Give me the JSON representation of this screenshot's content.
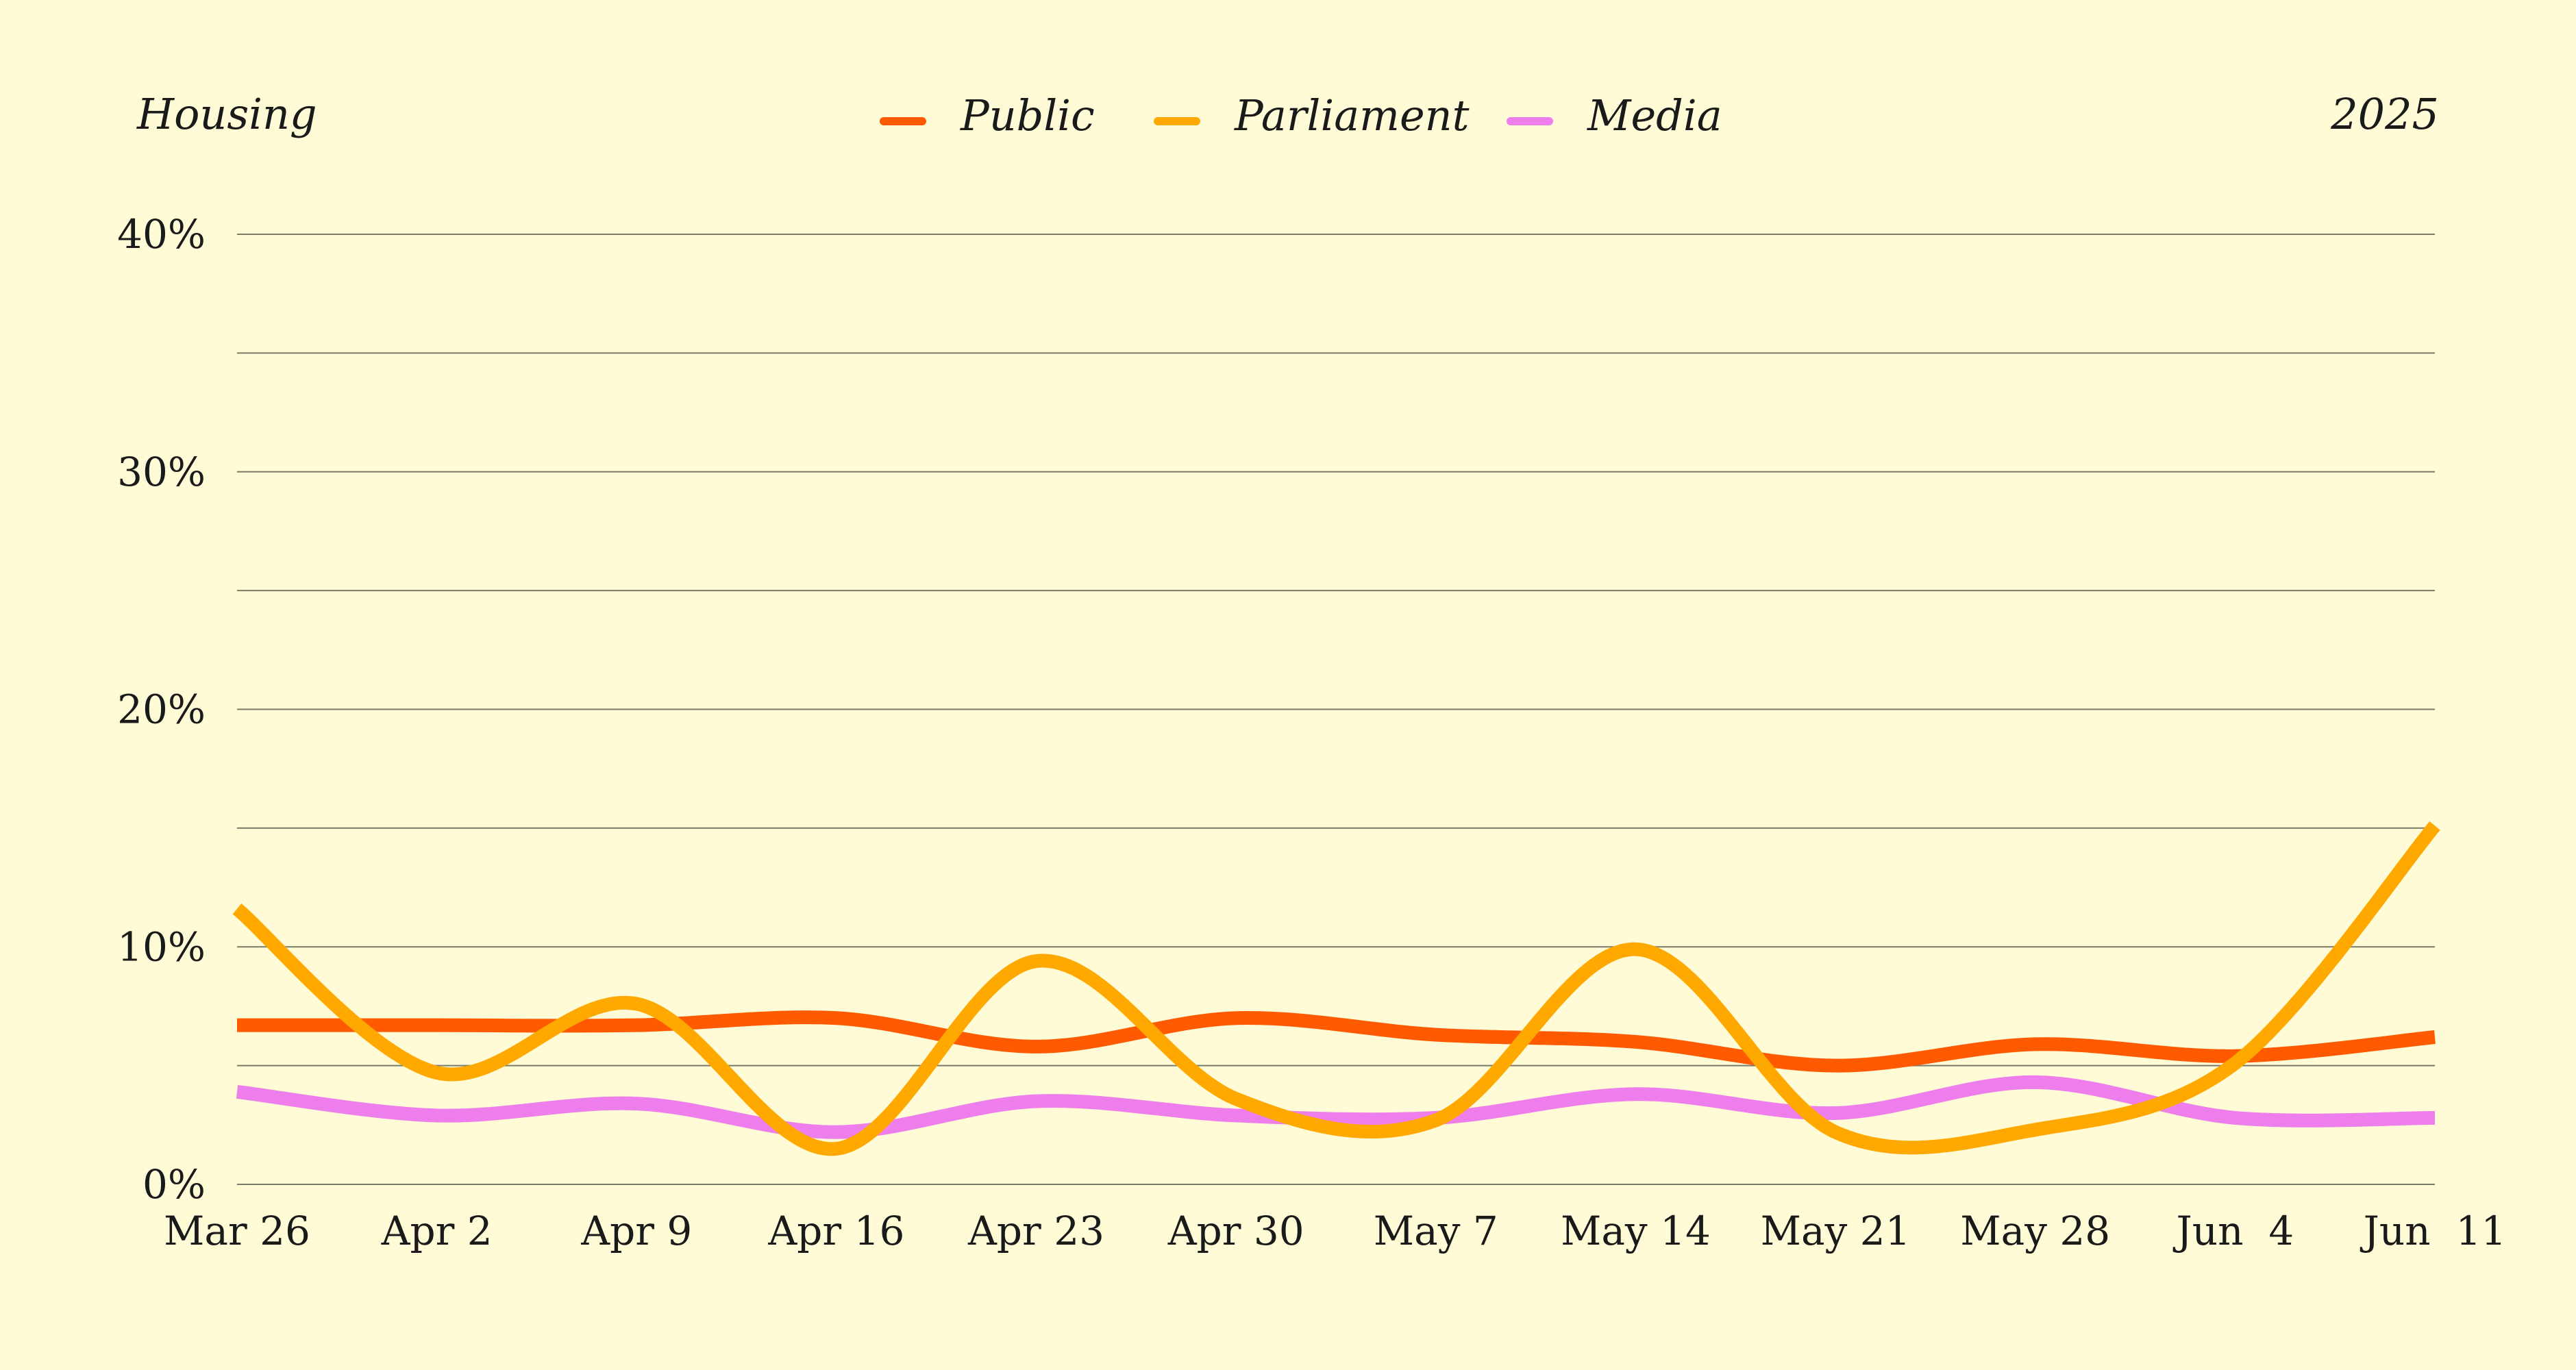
{
  "header": {
    "title": "Housing",
    "year": "2025"
  },
  "colors": {
    "background": "#FEFBD6",
    "grid": "#7a7a6a",
    "text": "#1a1a1a"
  },
  "chart_data": {
    "type": "line",
    "title": "Housing",
    "subtitle": "2025",
    "xlabel": "",
    "ylabel": "",
    "grid": true,
    "legend_position": "top-center",
    "x": [
      "Mar 26",
      "Apr 2",
      "Apr 9",
      "Apr 16",
      "Apr 23",
      "Apr 30",
      "May 7",
      "May 14",
      "May 21",
      "May 28",
      "Jun  4",
      "Jun  11"
    ],
    "ylim": [
      0,
      40
    ],
    "yticks": [
      0,
      10,
      20,
      30,
      40
    ],
    "ytick_labels": [
      "0%",
      "10%",
      "20%",
      "30%",
      "40%"
    ],
    "series": [
      {
        "name": "Public",
        "color": "#FF5A00",
        "values": [
          6.7,
          6.7,
          6.7,
          7.0,
          5.8,
          7.0,
          6.3,
          6.0,
          5.0,
          5.9,
          5.4,
          6.2
        ]
      },
      {
        "name": "Parliament",
        "color": "#FFA800",
        "values": [
          11.6,
          4.7,
          7.6,
          1.5,
          9.4,
          3.6,
          2.7,
          9.9,
          2.2,
          2.3,
          5.1,
          15.1
        ]
      },
      {
        "name": "Media",
        "color": "#EE7EEB",
        "values": [
          3.9,
          2.9,
          3.4,
          2.2,
          3.5,
          2.9,
          2.8,
          3.8,
          3.0,
          4.3,
          2.8,
          2.8
        ]
      }
    ]
  }
}
